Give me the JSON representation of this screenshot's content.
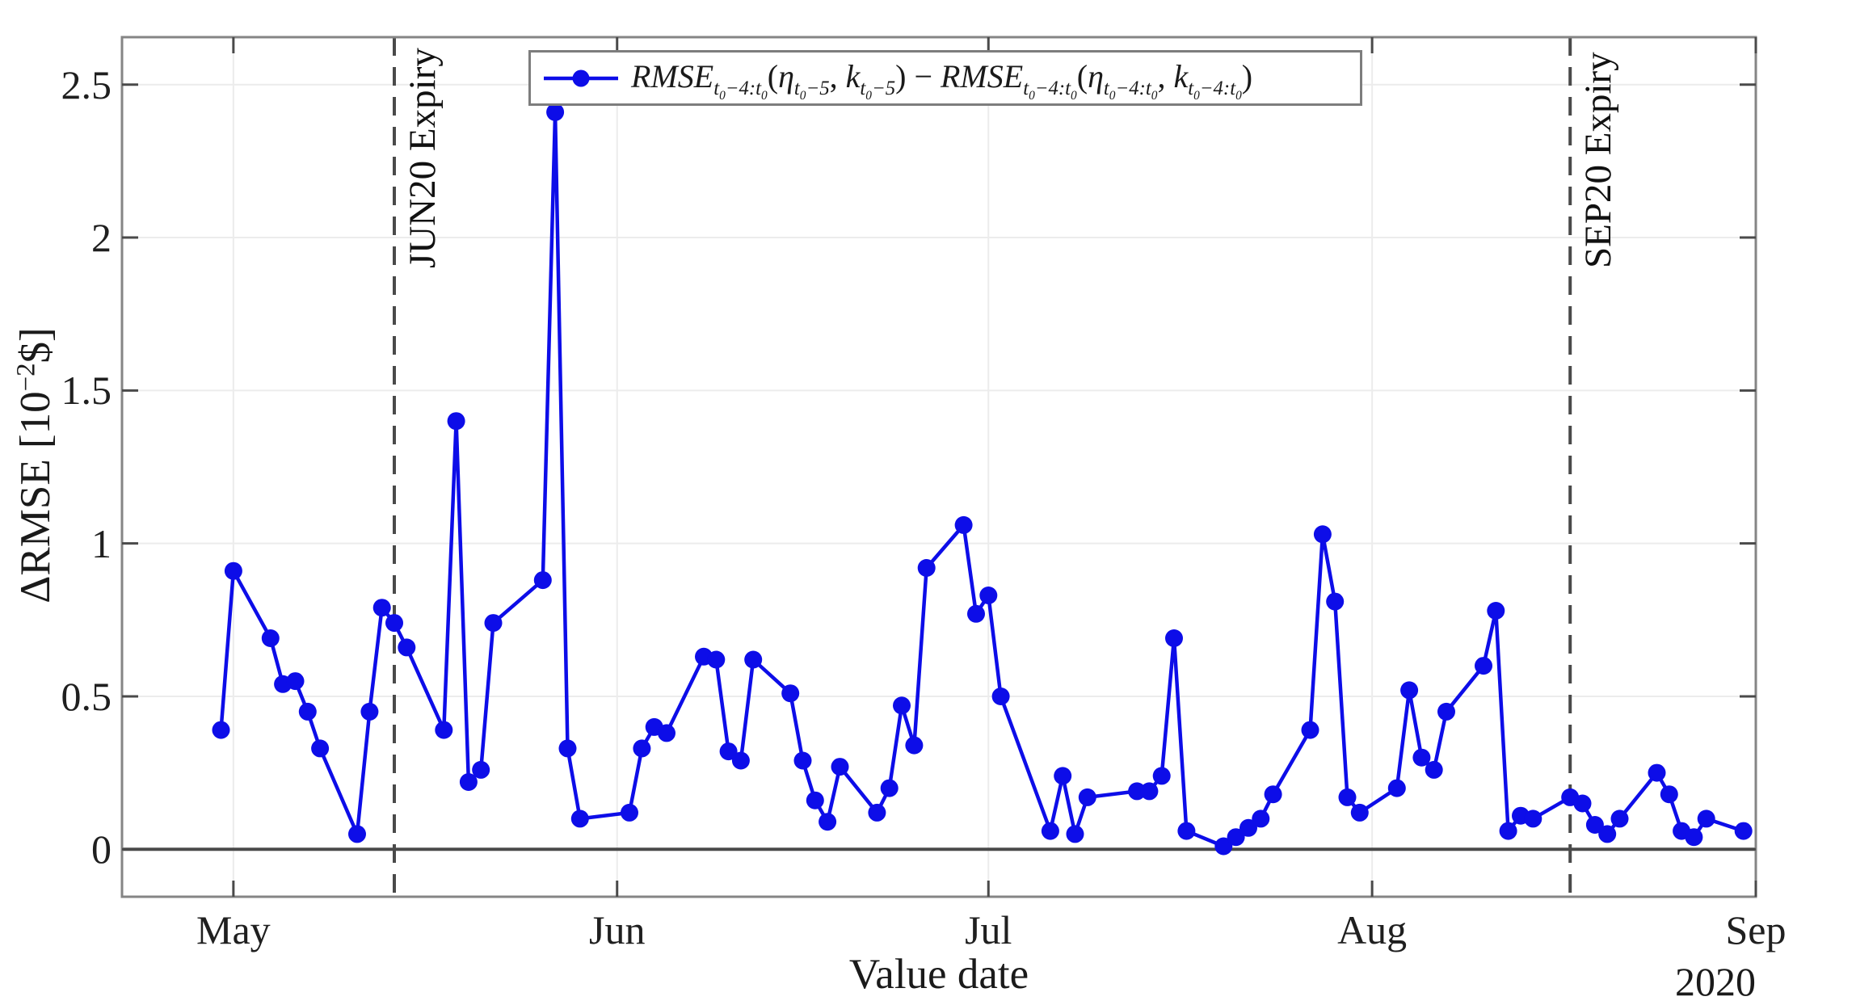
{
  "axes": {
    "xlabel": "Value date",
    "year_label": "2020",
    "ylabel_segments": [
      {
        "t": "ΔRMSE [10",
        "s": ""
      },
      {
        "t": "−2",
        "s": "sup"
      },
      {
        "t": "$]",
        "s": ""
      }
    ],
    "x_ticks": [
      {
        "label": "May",
        "d": 0
      },
      {
        "label": "Jun",
        "d": 31
      },
      {
        "label": "Jul",
        "d": 61
      },
      {
        "label": "Aug",
        "d": 92
      },
      {
        "label": "Sep",
        "d": 123
      }
    ],
    "y_ticks": [
      {
        "label": "0",
        "v": 0
      },
      {
        "label": "0.5",
        "v": 0.5
      },
      {
        "label": "1",
        "v": 1
      },
      {
        "label": "1.5",
        "v": 1.5
      },
      {
        "label": "2",
        "v": 2
      },
      {
        "label": "2.5",
        "v": 2.5
      }
    ]
  },
  "expiry_lines": [
    {
      "label": "JUN20 Expiry",
      "d": 13
    },
    {
      "label": "SEP20 Expiry",
      "d": 108
    }
  ],
  "legend": {
    "segments": [
      {
        "t": "RMSE",
        "s": "i"
      },
      {
        "t": "t0−4:t0",
        "s": "sub"
      },
      {
        "t": "(",
        "s": ""
      },
      {
        "t": "η",
        "s": "i"
      },
      {
        "t": "t0−5",
        "s": "sub"
      },
      {
        "t": ", ",
        "s": ""
      },
      {
        "t": "k",
        "s": "i"
      },
      {
        "t": "t0−5",
        "s": "sub"
      },
      {
        "t": ")",
        "s": ""
      },
      {
        "t": " − ",
        "s": ""
      },
      {
        "t": "RMSE",
        "s": "i"
      },
      {
        "t": "t0−4:t0",
        "s": "sub"
      },
      {
        "t": "(",
        "s": ""
      },
      {
        "t": "η",
        "s": "i"
      },
      {
        "t": "t0−4:t0",
        "s": "sub"
      },
      {
        "t": ", ",
        "s": ""
      },
      {
        "t": "k",
        "s": "i"
      },
      {
        "t": "t0−4:t0",
        "s": "sub"
      },
      {
        "t": ")",
        "s": ""
      }
    ]
  },
  "colors": {
    "line": "#0d0de8",
    "grid": "#ececec",
    "box": "#858585",
    "tick": "#4a4a4a",
    "zero_line": "#4a4a4a",
    "dashed_line": "#4a4a4a"
  },
  "chart_data": {
    "type": "line",
    "title": "",
    "xlabel": "Value date",
    "ylabel": "ΔRMSE [10^−2 $]",
    "legend_position": "top-center",
    "grid": true,
    "marker": "filled-circle",
    "x_unit": "days since 2020-05-01",
    "xlim_days": [
      -9,
      123
    ],
    "ylim": [
      -0.155,
      2.655
    ],
    "dates": [
      "Apr 30",
      "May 1",
      "May 4",
      "May 5",
      "May 6",
      "May 7",
      "May 8",
      "May 11",
      "May 12",
      "May 13",
      "May 14",
      "May 15",
      "May 18",
      "May 19",
      "May 20",
      "May 21",
      "May 22",
      "May 26",
      "May 27",
      "May 28",
      "May 29",
      "Jun 2",
      "Jun 3",
      "Jun 4",
      "Jun 5",
      "Jun 8",
      "Jun 9",
      "Jun 10",
      "Jun 11",
      "Jun 12",
      "Jun 15",
      "Jun 16",
      "Jun 17",
      "Jun 18",
      "Jun 19",
      "Jun 22",
      "Jun 23",
      "Jun 24",
      "Jun 25",
      "Jun 26",
      "Jun 29",
      "Jun 30",
      "Jul 1",
      "Jul 2",
      "Jul 6",
      "Jul 7",
      "Jul 8",
      "Jul 9",
      "Jul 13",
      "Jul 14",
      "Jul 15",
      "Jul 16",
      "Jul 17",
      "Jul 20",
      "Jul 21",
      "Jul 22",
      "Jul 23",
      "Jul 24",
      "Jul 27",
      "Jul 28",
      "Jul 29",
      "Jul 30",
      "Jul 31",
      "Aug 3",
      "Aug 4",
      "Aug 5",
      "Aug 6",
      "Aug 7",
      "Aug 10",
      "Aug 11",
      "Aug 12",
      "Aug 13",
      "Aug 14",
      "Aug 17",
      "Aug 18",
      "Aug 19",
      "Aug 20",
      "Aug 21",
      "Aug 24",
      "Aug 25",
      "Aug 26",
      "Aug 27",
      "Aug 28",
      "Aug 31"
    ],
    "day_offsets": [
      -1,
      0,
      3,
      4,
      5,
      6,
      7,
      10,
      11,
      12,
      13,
      14,
      17,
      18,
      19,
      20,
      21,
      25,
      26,
      27,
      28,
      32,
      33,
      34,
      35,
      38,
      39,
      40,
      41,
      42,
      45,
      46,
      47,
      48,
      49,
      52,
      53,
      54,
      55,
      56,
      59,
      60,
      61,
      62,
      66,
      67,
      68,
      69,
      73,
      74,
      75,
      76,
      77,
      80,
      81,
      82,
      83,
      84,
      87,
      88,
      89,
      90,
      91,
      94,
      95,
      96,
      97,
      98,
      101,
      102,
      103,
      104,
      105,
      108,
      109,
      110,
      111,
      112,
      115,
      116,
      117,
      118,
      119,
      122
    ],
    "values": [
      0.39,
      0.91,
      0.69,
      0.54,
      0.55,
      0.45,
      0.33,
      0.05,
      0.45,
      0.79,
      0.74,
      0.66,
      0.39,
      1.4,
      0.22,
      0.26,
      0.74,
      0.88,
      2.41,
      0.33,
      0.1,
      0.12,
      0.33,
      0.4,
      0.38,
      0.63,
      0.62,
      0.32,
      0.29,
      0.62,
      0.51,
      0.29,
      0.16,
      0.09,
      0.27,
      0.12,
      0.2,
      0.47,
      0.34,
      0.92,
      1.06,
      0.77,
      0.83,
      0.5,
      0.06,
      0.24,
      0.05,
      0.17,
      0.19,
      0.19,
      0.24,
      0.69,
      0.06,
      0.01,
      0.04,
      0.07,
      0.1,
      0.18,
      0.39,
      1.03,
      0.81,
      0.17,
      0.12,
      0.2,
      0.52,
      0.3,
      0.26,
      0.45,
      0.6,
      0.78,
      0.06,
      0.11,
      0.1,
      0.17,
      0.15,
      0.08,
      0.05,
      0.1,
      0.25,
      0.18,
      0.06,
      0.04,
      0.1,
      0.06
    ]
  }
}
